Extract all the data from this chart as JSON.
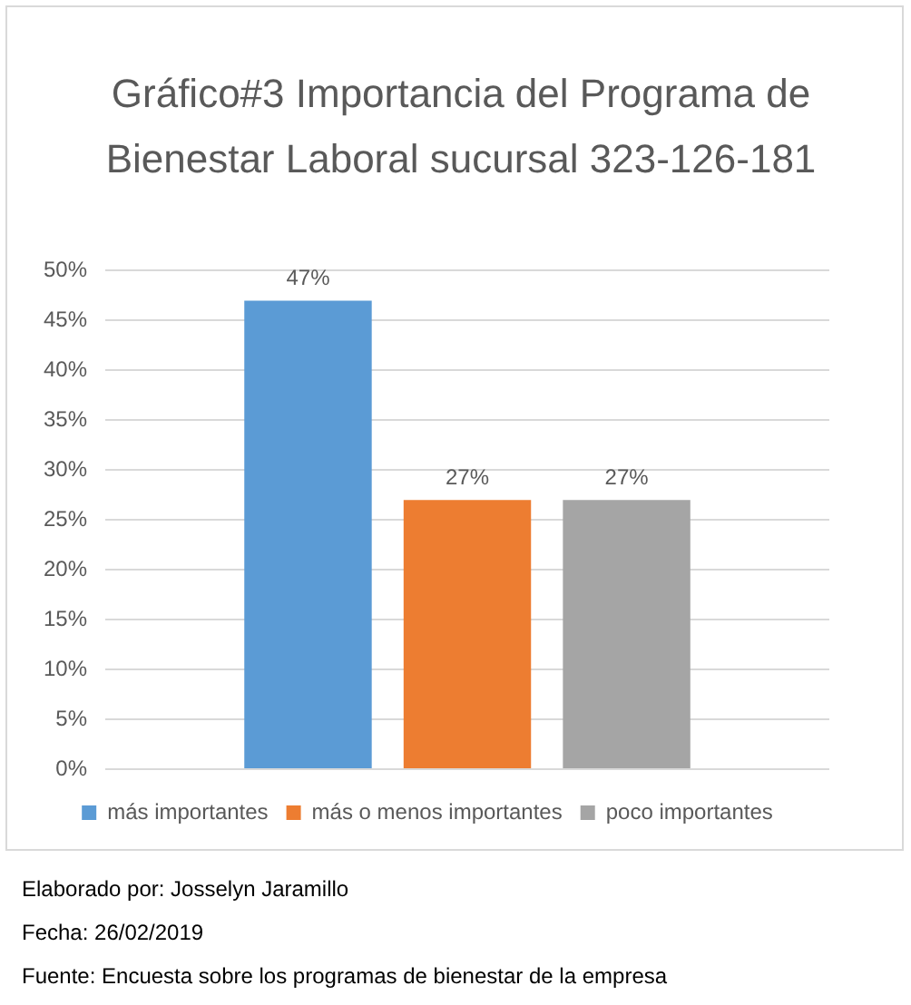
{
  "chart_data": {
    "type": "bar",
    "title": "Gráfico#3 Importancia del Programa de Bienestar Laboral sucursal 323-126-181",
    "categories": [
      null
    ],
    "series": [
      {
        "name": "más importantes",
        "color": "#5b9bd5",
        "values": [
          47
        ],
        "value_labels": [
          "47%"
        ]
      },
      {
        "name": "más o menos importantes",
        "color": "#ed7d31",
        "values": [
          27
        ],
        "value_labels": [
          "27%"
        ]
      },
      {
        "name": "poco importantes",
        "color": "#a5a5a5",
        "values": [
          27
        ],
        "value_labels": [
          "27%"
        ]
      }
    ],
    "ylim": [
      0,
      50
    ],
    "yticks": [
      {
        "value": 0,
        "label": "0%"
      },
      {
        "value": 5,
        "label": "5%"
      },
      {
        "value": 10,
        "label": "10%"
      },
      {
        "value": 15,
        "label": "15%"
      },
      {
        "value": 20,
        "label": "20%"
      },
      {
        "value": 25,
        "label": "25%"
      },
      {
        "value": 30,
        "label": "30%"
      },
      {
        "value": 35,
        "label": "35%"
      },
      {
        "value": 40,
        "label": "40%"
      },
      {
        "value": 45,
        "label": "45%"
      },
      {
        "value": 50,
        "label": "50%"
      }
    ],
    "grid": "y",
    "legend": "bottom",
    "tick_labels": "y",
    "annotations": [
      "Elaborado por: Josselyn Jaramillo",
      "Fecha: 26/02/2019",
      "Fuente: Encuesta sobre los programas de bienestar de la empresa"
    ]
  }
}
